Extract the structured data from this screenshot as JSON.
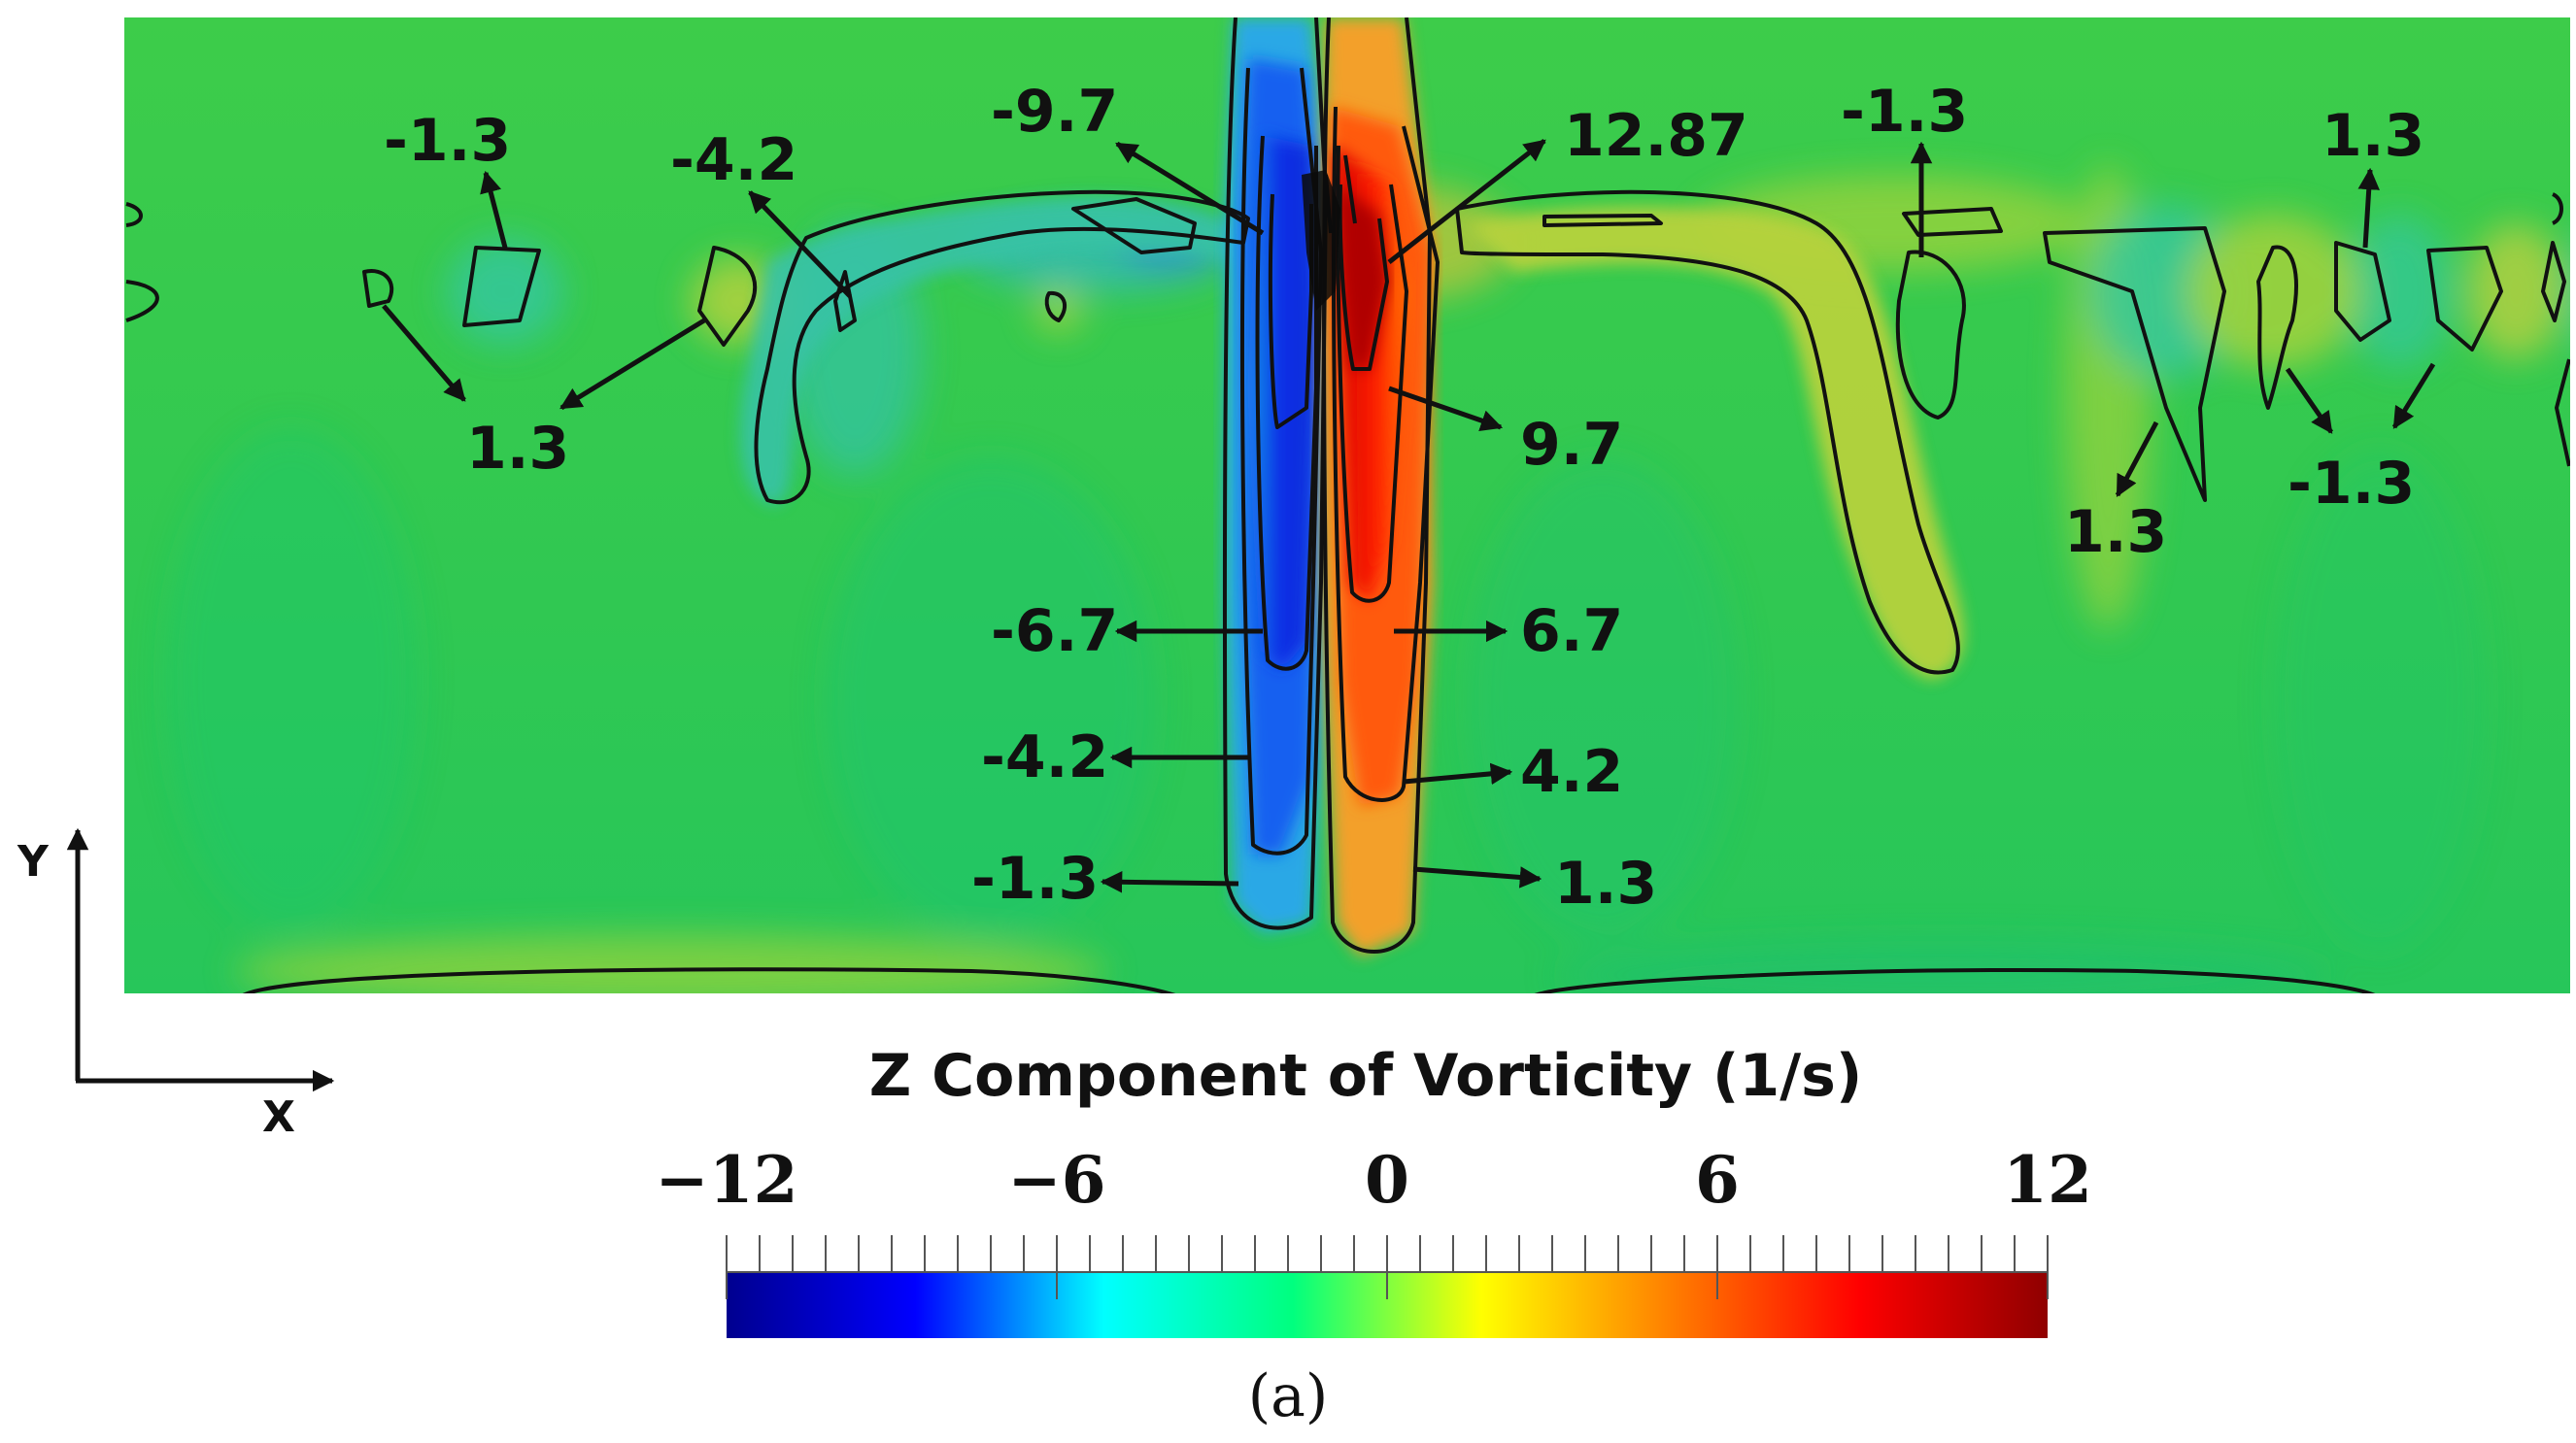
{
  "chart_data": {
    "type": "heatmap",
    "title": "Z Component of Vorticity (1/s)",
    "colorbar": {
      "min": -12,
      "max": 12,
      "tick_labels": [
        "−12",
        "−6",
        "0",
        "6",
        "12"
      ],
      "tick_values": [
        -12,
        -6,
        0,
        6,
        12
      ],
      "colors": [
        "#00008f",
        "#0000ff",
        "#00ffff",
        "#00ff7f",
        "#ffff00",
        "#ff7f00",
        "#ff0000",
        "#8f0000"
      ]
    },
    "field": {
      "background_value": 0.3,
      "background_color": "#2fc84a"
    },
    "contour_labels": [
      {
        "text": "-9.7",
        "value": -9.7
      },
      {
        "text": "12.87",
        "value": 12.87
      },
      {
        "text": "9.7",
        "value": 9.7
      },
      {
        "text": "-6.7",
        "value": -6.7
      },
      {
        "text": "6.7",
        "value": 6.7
      },
      {
        "text": "-4.2",
        "value": -4.2
      },
      {
        "text": "4.2",
        "value": 4.2
      },
      {
        "text": "-1.3",
        "value": -1.3
      },
      {
        "text": "1.3",
        "value": 1.3
      },
      {
        "text": "-1.3",
        "value": -1.3
      },
      {
        "text": "-4.2",
        "value": -4.2
      },
      {
        "text": "1.3",
        "value": 1.3
      },
      {
        "text": "-1.3",
        "value": -1.3
      },
      {
        "text": "1.3",
        "value": 1.3
      },
      {
        "text": "1.3",
        "value": 1.3
      },
      {
        "text": "-1.3",
        "value": -1.3
      }
    ],
    "axes": {
      "x_label": "X",
      "y_label": "Y"
    }
  },
  "caption": "(a)"
}
